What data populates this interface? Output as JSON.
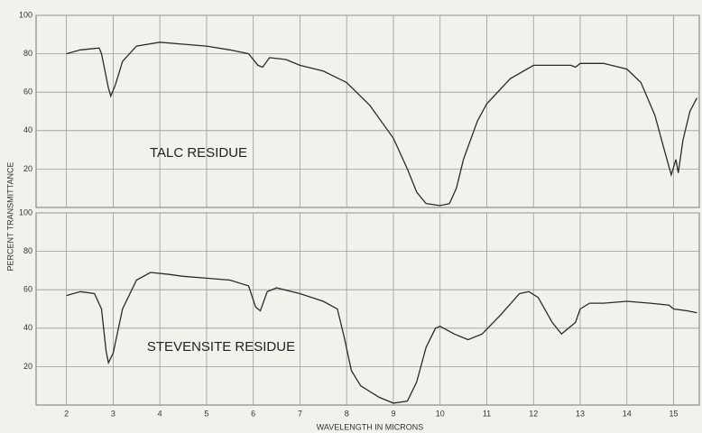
{
  "chart_data": [
    {
      "type": "line",
      "annotation": "TALC RESIDUE",
      "ylabel": "PERCENT TRANSMITTANCE",
      "color": "#2b2b2b",
      "x": [
        2.0,
        2.3,
        2.7,
        2.75,
        2.9,
        2.95,
        3.05,
        3.2,
        3.5,
        4.0,
        4.5,
        5.0,
        5.5,
        5.9,
        6.1,
        6.2,
        6.35,
        6.7,
        7.0,
        7.5,
        8.0,
        8.5,
        9.0,
        9.3,
        9.5,
        9.7,
        10.0,
        10.2,
        10.35,
        10.5,
        10.8,
        11.0,
        11.5,
        12.0,
        12.5,
        12.8,
        12.9,
        13.0,
        13.5,
        14.0,
        14.3,
        14.6,
        14.8,
        14.95,
        15.05,
        15.1,
        15.2,
        15.35,
        15.5
      ],
      "y": [
        80,
        82,
        83,
        80,
        62,
        58,
        64,
        76,
        84,
        86,
        85,
        84,
        82,
        80,
        74,
        73,
        78,
        77,
        74,
        71,
        65,
        53,
        36,
        20,
        8,
        2,
        1,
        2,
        10,
        25,
        45,
        54,
        67,
        74,
        74,
        74,
        73,
        75,
        75,
        72,
        65,
        48,
        30,
        17,
        25,
        18,
        35,
        50,
        57
      ],
      "xlim": [
        1.35,
        15.55
      ],
      "ylim": [
        0,
        100
      ],
      "yticks": [
        20,
        40,
        60,
        80,
        100
      ],
      "grid": true
    },
    {
      "type": "line",
      "annotation": "STEVENSITE RESIDUE",
      "xlabel": "WAVELENGTH IN MICRONS",
      "color": "#2b2b2b",
      "x": [
        2.0,
        2.3,
        2.6,
        2.75,
        2.85,
        2.9,
        3.0,
        3.2,
        3.5,
        3.8,
        4.2,
        4.5,
        5.0,
        5.5,
        5.9,
        6.05,
        6.15,
        6.3,
        6.5,
        7.0,
        7.5,
        7.8,
        7.95,
        8.1,
        8.3,
        8.7,
        9.0,
        9.3,
        9.5,
        9.7,
        9.9,
        10.0,
        10.3,
        10.6,
        10.9,
        11.3,
        11.7,
        11.9,
        12.1,
        12.4,
        12.6,
        12.9,
        13.0,
        13.2,
        13.5,
        14.0,
        14.5,
        14.9,
        15.0,
        15.3,
        15.5
      ],
      "y": [
        57,
        59,
        58,
        50,
        28,
        22,
        27,
        50,
        65,
        69,
        68,
        67,
        66,
        65,
        62,
        51,
        49,
        59,
        61,
        58,
        54,
        50,
        35,
        18,
        10,
        4,
        1,
        2,
        12,
        30,
        40,
        41,
        37,
        34,
        37,
        47,
        58,
        59,
        56,
        43,
        37,
        43,
        50,
        53,
        53,
        54,
        53,
        52,
        50,
        49,
        48
      ],
      "xlim": [
        1.35,
        15.55
      ],
      "ylim": [
        0,
        100
      ],
      "yticks": [
        20,
        40,
        60,
        80,
        100
      ],
      "xticks": [
        2,
        3,
        4,
        5,
        6,
        7,
        8,
        9,
        10,
        11,
        12,
        13,
        14,
        15
      ],
      "grid": true
    }
  ]
}
